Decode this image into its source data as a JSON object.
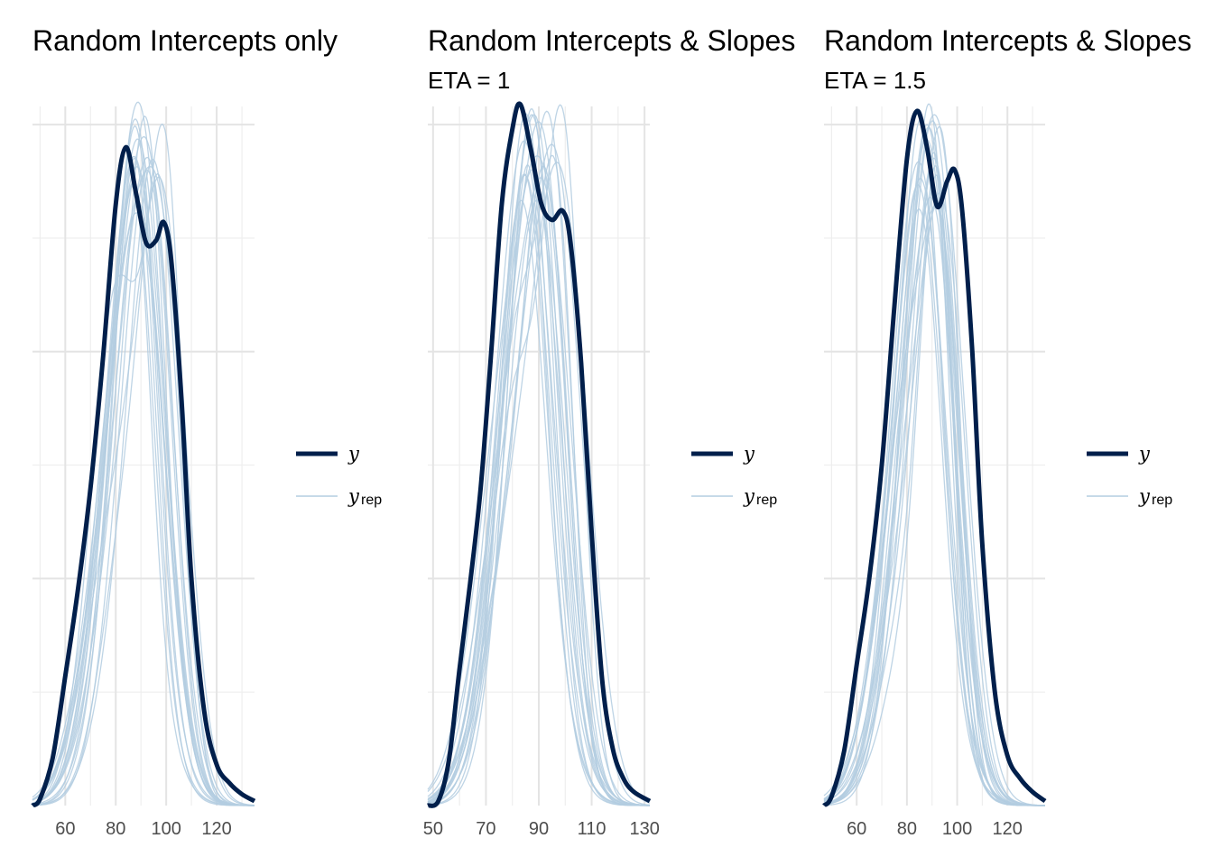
{
  "colors": {
    "y": "#011f4b",
    "yrep": "#b3cde0",
    "grid_major": "#e4e4e4",
    "grid_minor": "#eeeeee",
    "tick_text": "#4d4d4d"
  },
  "chart_data": [
    {
      "type": "line",
      "title": "Random Intercepts only",
      "subtitle": "",
      "xlabel": "",
      "ylabel": "",
      "xlim": [
        47,
        135
      ],
      "ylim": [
        0,
        0.0308
      ],
      "x_ticks": [
        60,
        80,
        100,
        120
      ],
      "x_tick_labels": [
        "60",
        "80",
        "100",
        "120"
      ],
      "y_gridlines": [
        0.005,
        0.01,
        0.015,
        0.02,
        0.025,
        0.03
      ],
      "y_axis_labels_shown": false,
      "grid": true,
      "legend_position": "right",
      "legend": [
        {
          "key": "y",
          "label": "y"
        },
        {
          "key": "yrep",
          "label": "y",
          "subscript": "rep"
        }
      ],
      "density_y": {
        "x": [
          47,
          50,
          55,
          60,
          65,
          70,
          75,
          80,
          84,
          88,
          92,
          96,
          99,
          102,
          106,
          110,
          115,
          120,
          125,
          130,
          135
        ],
        "y": [
          0.0,
          0.0003,
          0.0021,
          0.0057,
          0.0095,
          0.014,
          0.0198,
          0.0265,
          0.029,
          0.027,
          0.0248,
          0.0249,
          0.0257,
          0.024,
          0.018,
          0.01,
          0.0042,
          0.0018,
          0.001,
          0.0005,
          0.0002
        ]
      },
      "yrep_count": 20,
      "yrep_amplitude_range": [
        0.026,
        0.031
      ],
      "yrep_peak_range": [
        86,
        101
      ]
    },
    {
      "type": "line",
      "title": "Random Intercepts & Slopes",
      "subtitle": "ETA = 1",
      "xlabel": "",
      "ylabel": "",
      "xlim": [
        48,
        132
      ],
      "ylim": [
        0,
        0.0308
      ],
      "x_ticks": [
        50,
        70,
        90,
        110,
        130
      ],
      "x_tick_labels": [
        "50",
        "70",
        "90",
        "110",
        "130"
      ],
      "y_gridlines": [
        0.005,
        0.01,
        0.015,
        0.02,
        0.025,
        0.03
      ],
      "y_axis_labels_shown": false,
      "grid": true,
      "legend_position": "right",
      "legend": [
        {
          "key": "y",
          "label": "y"
        },
        {
          "key": "yrep",
          "label": "y",
          "subscript": "rep"
        }
      ],
      "density_y": {
        "x": [
          48,
          52,
          56,
          60,
          64,
          68,
          72,
          76,
          80,
          83,
          87,
          91,
          95,
          99,
          102,
          106,
          110,
          114,
          118,
          122,
          126,
          132
        ],
        "y": [
          0.0,
          0.0002,
          0.002,
          0.006,
          0.0098,
          0.014,
          0.02,
          0.0265,
          0.0298,
          0.0309,
          0.0289,
          0.0265,
          0.0258,
          0.0262,
          0.0248,
          0.0195,
          0.012,
          0.0055,
          0.0025,
          0.0012,
          0.0006,
          0.0002
        ]
      },
      "yrep_count": 20,
      "yrep_amplitude_range": [
        0.026,
        0.031
      ],
      "yrep_peak_range": [
        84,
        100
      ]
    },
    {
      "type": "line",
      "title": "Random Intercepts & Slopes",
      "subtitle": "ETA = 1.5",
      "xlabel": "",
      "ylabel": "",
      "xlim": [
        47,
        135
      ],
      "ylim": [
        0,
        0.0308
      ],
      "x_ticks": [
        60,
        80,
        100,
        120
      ],
      "x_tick_labels": [
        "60",
        "80",
        "100",
        "120"
      ],
      "y_gridlines": [
        0.005,
        0.01,
        0.015,
        0.02,
        0.025,
        0.03
      ],
      "y_axis_labels_shown": false,
      "grid": true,
      "legend_position": "right",
      "legend": [
        {
          "key": "y",
          "label": "y"
        },
        {
          "key": "yrep",
          "label": "y",
          "subscript": "rep"
        }
      ],
      "density_y": {
        "x": [
          47,
          50,
          55,
          60,
          65,
          70,
          75,
          80,
          84,
          88,
          92,
          96,
          99,
          102,
          106,
          110,
          115,
          120,
          125,
          130,
          135
        ],
        "y": [
          0.0,
          0.0004,
          0.0024,
          0.0062,
          0.01,
          0.015,
          0.022,
          0.0285,
          0.0306,
          0.029,
          0.0264,
          0.0275,
          0.028,
          0.0262,
          0.02,
          0.0115,
          0.005,
          0.0022,
          0.0012,
          0.0006,
          0.0002
        ]
      },
      "yrep_count": 20,
      "yrep_amplitude_range": [
        0.026,
        0.031
      ],
      "yrep_peak_range": [
        84,
        97
      ]
    }
  ]
}
